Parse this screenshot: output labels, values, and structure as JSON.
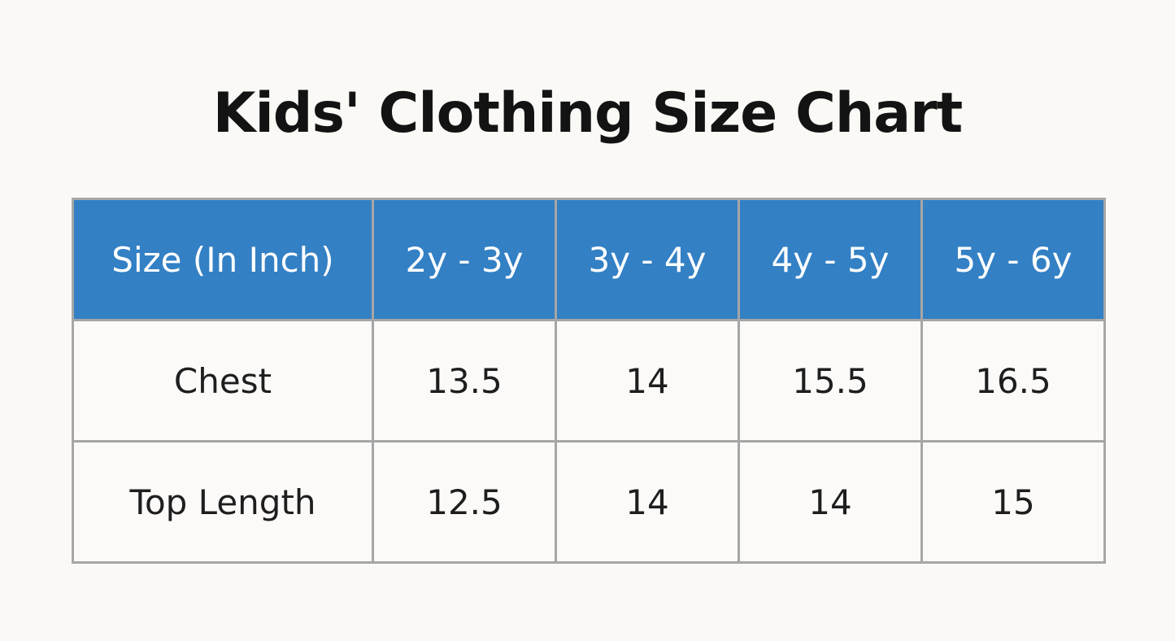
{
  "page": {
    "title": "Kids' Clothing Size Chart"
  },
  "colors": {
    "page_bg": "#faf9f6",
    "cell_bg": "#fbfaf8",
    "header_bg": "#3380c4",
    "header_text": "#ffffff",
    "border": "#a6a6a6",
    "body_text": "#1e1e1e",
    "title_text": "#131313"
  },
  "table": {
    "headers": [
      "Size (In Inch)",
      "2y - 3y",
      "3y - 4y",
      "4y - 5y",
      "5y - 6y"
    ],
    "rows": [
      {
        "label": "Chest",
        "values": [
          "13.5",
          "14",
          "15.5",
          "16.5"
        ]
      },
      {
        "label": "Top Length",
        "values": [
          "12.5",
          "14",
          "14",
          "15"
        ]
      }
    ]
  },
  "chart_data": {
    "type": "table",
    "title": "Kids' Clothing Size Chart",
    "columns": [
      "Size (In Inch)",
      "2y - 3y",
      "3y - 4y",
      "4y - 5y",
      "5y - 6y"
    ],
    "rows": [
      [
        "Chest",
        13.5,
        14,
        15.5,
        16.5
      ],
      [
        "Top Length",
        12.5,
        14,
        14,
        15
      ]
    ]
  }
}
